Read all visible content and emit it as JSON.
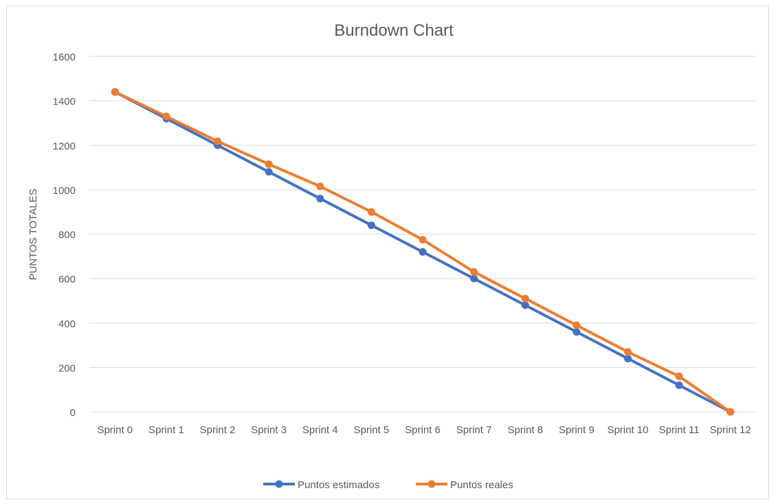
{
  "chart_data": {
    "type": "line",
    "title": "Burndown Chart",
    "xlabel": "",
    "ylabel": "PUNTOS TOTALES",
    "ylim": [
      0,
      1600
    ],
    "yticks": [
      "0",
      "200",
      "400",
      "600",
      "800",
      "1000",
      "1200",
      "1400",
      "1600"
    ],
    "grid": true,
    "legend_position": "bottom",
    "categories": [
      "Sprint 0",
      "Sprint 1",
      "Sprint 2",
      "Sprint 3",
      "Sprint 4",
      "Sprint 5",
      "Sprint 6",
      "Sprint 7",
      "Sprint 8",
      "Sprint 9",
      "Sprint 10",
      "Sprint 11",
      "Sprint 12"
    ],
    "series": [
      {
        "name": "Puntos estimados",
        "color": "#4472c4",
        "values": [
          1440,
          1320,
          1200,
          1080,
          960,
          840,
          720,
          600,
          480,
          360,
          240,
          120,
          0
        ]
      },
      {
        "name": "Puntos reales",
        "color": "#ed7d31",
        "values": [
          1440,
          1330,
          1218,
          1115,
          1015,
          900,
          775,
          630,
          510,
          390,
          270,
          160,
          0
        ]
      }
    ]
  }
}
